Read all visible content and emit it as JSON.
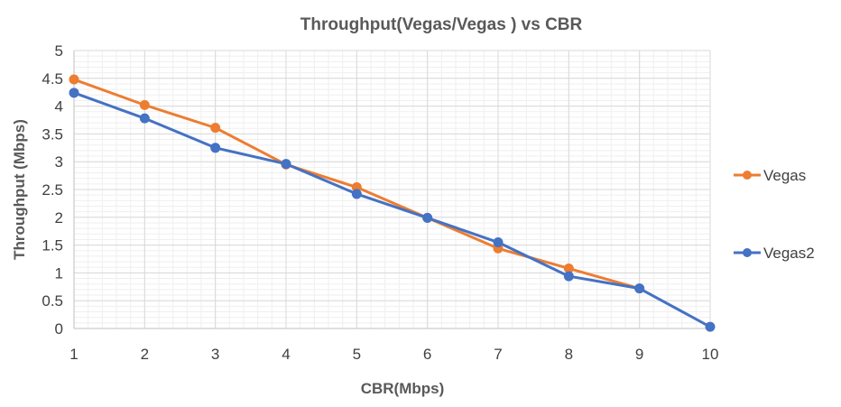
{
  "chart_data": {
    "type": "line",
    "title": "Throughput(Vegas/Vegas ) vs CBR",
    "xlabel": "CBR(Mbps)",
    "ylabel": "Throughput (Mbps)",
    "x": [
      1,
      2,
      3,
      4,
      5,
      6,
      7,
      8,
      9,
      10
    ],
    "xlim": [
      1,
      10
    ],
    "ylim": [
      0,
      5
    ],
    "ytick_step": 0.5,
    "grid": true,
    "minor_grid": true,
    "legend_position": "right",
    "series": [
      {
        "name": "Vegas",
        "color": "#ed7d31",
        "values": [
          4.48,
          4.02,
          3.61,
          2.95,
          2.54,
          1.99,
          1.44,
          1.08,
          0.72,
          null
        ]
      },
      {
        "name": "Vegas2",
        "color": "#4472c4",
        "values": [
          4.24,
          3.78,
          3.25,
          2.96,
          2.42,
          1.99,
          1.55,
          0.94,
          0.72,
          0.03
        ]
      }
    ]
  }
}
